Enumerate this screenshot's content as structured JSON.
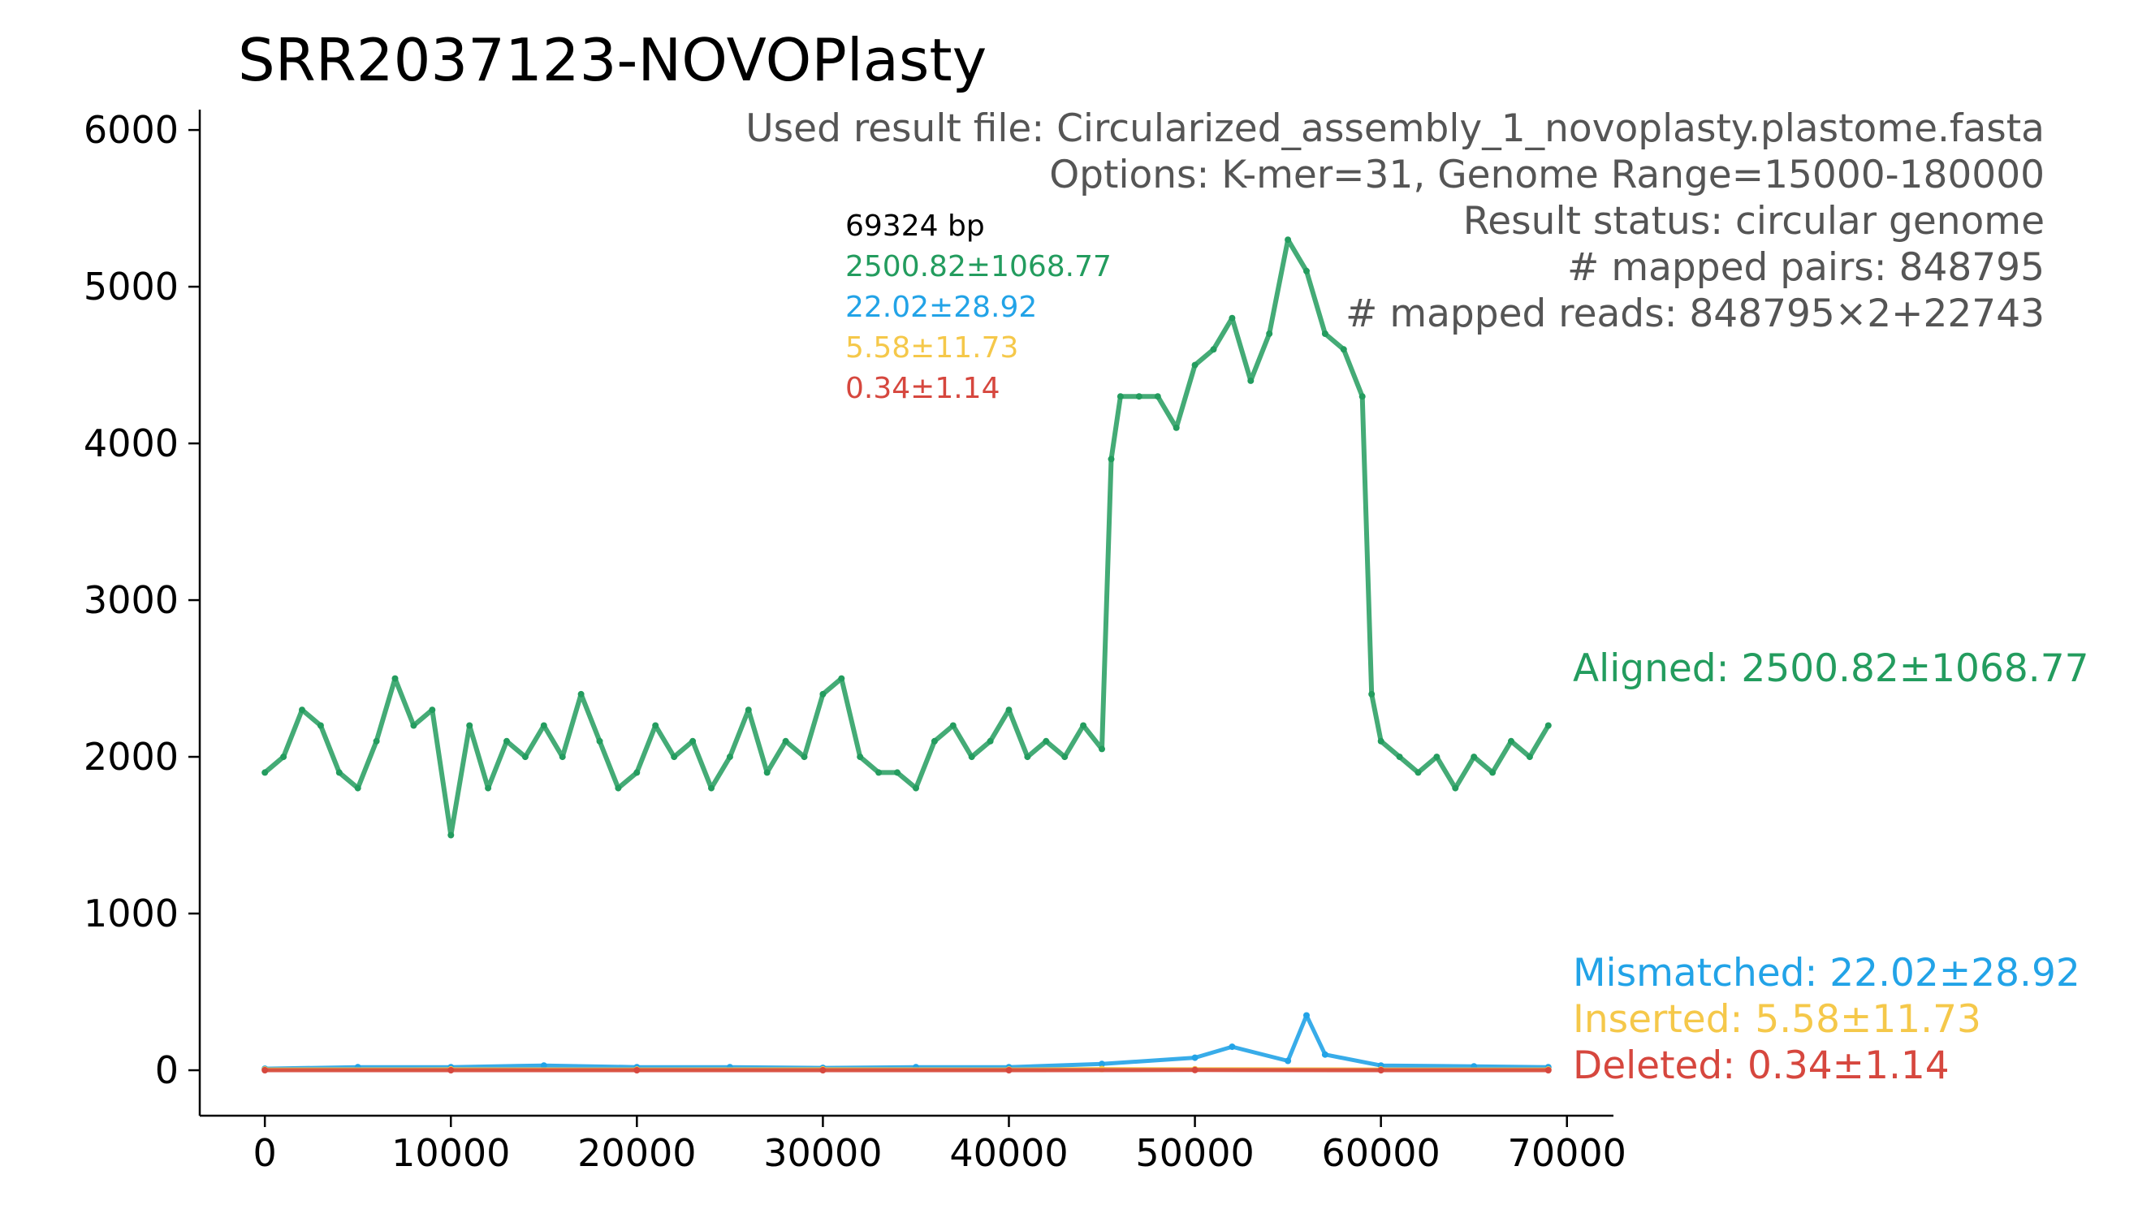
{
  "title": "SRR2037123-NOVOPlasty",
  "info": {
    "result_file": "Used result file: Circularized_assembly_1_novoplasty.plastome.fasta",
    "options": "Options: K-mer=31, Genome Range=15000-180000",
    "status": "Result status: circular genome",
    "mapped_pairs": "# mapped pairs: 848795",
    "mapped_reads": "# mapped reads: 848795×2+22743"
  },
  "stats": {
    "length": "69324 bp",
    "aligned": "2500.82±1068.77",
    "mismatched": "22.02±28.92",
    "inserted": "5.58±11.73",
    "deleted": "0.34±1.14"
  },
  "right_labels": {
    "aligned": "Aligned: 2500.82±1068.77",
    "mismatched": "Mismatched: 22.02±28.92",
    "inserted": "Inserted: 5.58±11.73",
    "deleted": "Deleted: 0.34±1.14"
  },
  "colors": {
    "aligned": "#239c5e",
    "mismatched": "#22a3e7",
    "inserted": "#f5c84a",
    "deleted": "#d6473e",
    "info_text": "#555555"
  },
  "chart_data": {
    "type": "scatter",
    "xlim": [
      -3500,
      72500
    ],
    "ylim": [
      -290,
      6130
    ],
    "x_ticks": [
      0,
      10000,
      20000,
      30000,
      40000,
      50000,
      60000,
      70000
    ],
    "y_ticks": [
      0,
      1000,
      2000,
      3000,
      4000,
      5000,
      6000
    ],
    "x_tick_labels": [
      "0",
      "10000",
      "20000",
      "30000",
      "40000",
      "50000",
      "60000",
      "70000"
    ],
    "y_tick_labels": [
      "0",
      "1000",
      "2000",
      "3000",
      "4000",
      "5000",
      "6000"
    ],
    "grid": false,
    "series": [
      {
        "name": "Aligned",
        "x": [
          0,
          1000,
          2000,
          3000,
          4000,
          5000,
          6000,
          7000,
          8000,
          9000,
          10000,
          11000,
          12000,
          13000,
          14000,
          15000,
          16000,
          17000,
          18000,
          19000,
          20000,
          21000,
          22000,
          23000,
          24000,
          25000,
          26000,
          27000,
          28000,
          29000,
          30000,
          31000,
          32000,
          33000,
          34000,
          35000,
          36000,
          37000,
          38000,
          39000,
          40000,
          41000,
          42000,
          43000,
          44000,
          45000,
          45500,
          46000,
          47000,
          48000,
          49000,
          50000,
          51000,
          52000,
          53000,
          54000,
          55000,
          56000,
          57000,
          58000,
          59000,
          59500,
          60000,
          61000,
          62000,
          63000,
          64000,
          65000,
          66000,
          67000,
          68000,
          69000
        ],
        "y": [
          1900,
          2000,
          2300,
          2200,
          1900,
          1800,
          2100,
          2500,
          2200,
          2300,
          1500,
          2200,
          1800,
          2100,
          2000,
          2200,
          2000,
          2400,
          2100,
          1800,
          1900,
          2200,
          2000,
          2100,
          1800,
          2000,
          2300,
          1900,
          2100,
          2000,
          2400,
          2500,
          2000,
          1900,
          1900,
          1800,
          2100,
          2200,
          2000,
          2100,
          2300,
          2000,
          2100,
          2000,
          2200,
          2050,
          3900,
          4300,
          4300,
          4300,
          4100,
          4500,
          4600,
          4800,
          4400,
          4700,
          5300,
          5100,
          4700,
          4600,
          4300,
          2400,
          2100,
          2000,
          1900,
          2000,
          1800,
          2000,
          1900,
          2100,
          2000,
          2200
        ]
      },
      {
        "name": "Mismatched",
        "x": [
          0,
          5000,
          10000,
          15000,
          20000,
          25000,
          30000,
          35000,
          40000,
          45000,
          50000,
          52000,
          55000,
          56000,
          57000,
          60000,
          65000,
          69000
        ],
        "y": [
          10,
          20,
          20,
          30,
          20,
          20,
          15,
          20,
          20,
          40,
          80,
          150,
          60,
          350,
          100,
          30,
          25,
          20
        ]
      },
      {
        "name": "Inserted",
        "x": [
          0,
          10000,
          20000,
          30000,
          40000,
          45000,
          50000,
          60000,
          69000
        ],
        "y": [
          5,
          6,
          5,
          6,
          5,
          8,
          7,
          5,
          5
        ]
      },
      {
        "name": "Deleted",
        "x": [
          0,
          10000,
          20000,
          30000,
          40000,
          50000,
          60000,
          69000
        ],
        "y": [
          0,
          0,
          0,
          0,
          0,
          1,
          0,
          0
        ]
      }
    ]
  }
}
